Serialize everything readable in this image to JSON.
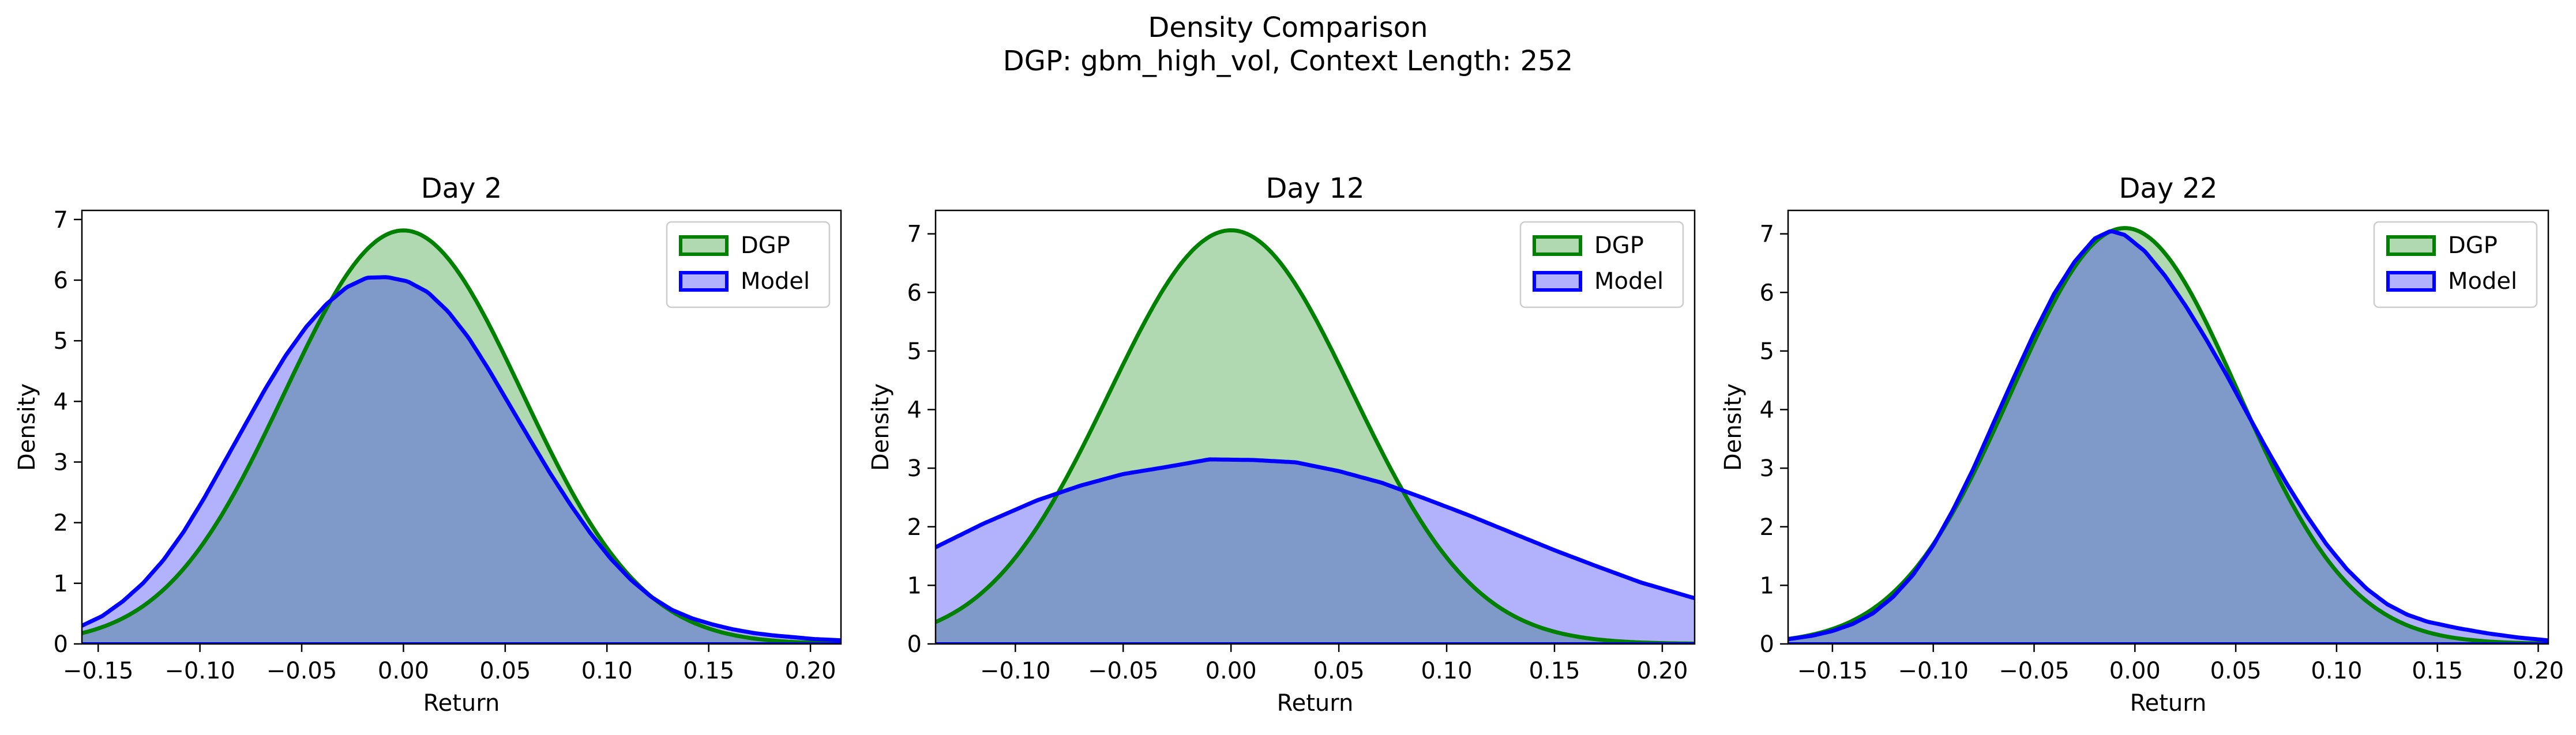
{
  "figure": {
    "title_line1": "Density Comparison",
    "title_line2": "DGP: gbm_high_vol, Context Length: 252"
  },
  "colors": {
    "dgp_line": "#008000",
    "dgp_fill": "#b1d9b1",
    "model_line": "#0000ff",
    "model_fill": "#b2b2fc",
    "overlap_fill": "#7f99c8"
  },
  "chart_data": [
    {
      "type": "area",
      "title": "Day 2",
      "xlabel": "Return",
      "ylabel": "Density",
      "xlim": [
        -0.158,
        0.215
      ],
      "ylim": [
        0,
        7.15
      ],
      "xticks": [
        -0.15,
        -0.1,
        -0.05,
        0.0,
        0.05,
        0.1,
        0.15,
        0.2
      ],
      "xtick_labels": [
        "−0.15",
        "−0.10",
        "−0.05",
        "0.00",
        "0.05",
        "0.10",
        "0.15",
        "0.20"
      ],
      "yticks": [
        0,
        1,
        2,
        3,
        4,
        5,
        6,
        7
      ],
      "ytick_labels": [
        "0",
        "1",
        "2",
        "3",
        "4",
        "5",
        "6",
        "7"
      ],
      "legend": {
        "position": "top-right",
        "entries": [
          "DGP",
          "Model"
        ]
      },
      "series": [
        {
          "name": "DGP",
          "type": "normal",
          "mean": 0.0,
          "sd": 0.0585
        },
        {
          "name": "Model",
          "x": [
            -0.158,
            -0.148,
            -0.138,
            -0.128,
            -0.118,
            -0.108,
            -0.098,
            -0.088,
            -0.078,
            -0.068,
            -0.058,
            -0.048,
            -0.038,
            -0.028,
            -0.018,
            -0.008,
            0.002,
            0.012,
            0.022,
            0.032,
            0.042,
            0.052,
            0.062,
            0.072,
            0.082,
            0.092,
            0.102,
            0.112,
            0.122,
            0.132,
            0.142,
            0.152,
            0.162,
            0.172,
            0.182,
            0.192,
            0.202,
            0.215
          ],
          "y": [
            0.3,
            0.46,
            0.7,
            1.0,
            1.38,
            1.85,
            2.4,
            3.0,
            3.6,
            4.2,
            4.75,
            5.22,
            5.6,
            5.88,
            6.04,
            6.05,
            5.98,
            5.8,
            5.48,
            5.05,
            4.52,
            3.95,
            3.38,
            2.82,
            2.3,
            1.82,
            1.4,
            1.05,
            0.77,
            0.56,
            0.42,
            0.32,
            0.24,
            0.18,
            0.14,
            0.11,
            0.08,
            0.06
          ]
        }
      ]
    },
    {
      "type": "area",
      "title": "Day 12",
      "xlabel": "Return",
      "ylabel": "Density",
      "xlim": [
        -0.137,
        0.215
      ],
      "ylim": [
        0,
        7.4
      ],
      "xticks": [
        -0.1,
        -0.05,
        0.0,
        0.05,
        0.1,
        0.15,
        0.2
      ],
      "xtick_labels": [
        "−0.10",
        "−0.05",
        "0.00",
        "0.05",
        "0.10",
        "0.15",
        "0.20"
      ],
      "yticks": [
        0,
        1,
        2,
        3,
        4,
        5,
        6,
        7
      ],
      "ytick_labels": [
        "0",
        "1",
        "2",
        "3",
        "4",
        "5",
        "6",
        "7"
      ],
      "legend": {
        "position": "top-right",
        "entries": [
          "DGP",
          "Model"
        ]
      },
      "series": [
        {
          "name": "DGP",
          "type": "normal",
          "mean": 0.0,
          "sd": 0.0565
        },
        {
          "name": "Model",
          "x": [
            -0.137,
            -0.115,
            -0.09,
            -0.07,
            -0.05,
            -0.03,
            -0.01,
            0.01,
            0.03,
            0.05,
            0.07,
            0.09,
            0.11,
            0.13,
            0.15,
            0.17,
            0.19,
            0.215
          ],
          "y": [
            1.65,
            2.05,
            2.45,
            2.7,
            2.9,
            3.02,
            3.15,
            3.14,
            3.1,
            2.95,
            2.75,
            2.48,
            2.2,
            1.9,
            1.6,
            1.32,
            1.05,
            0.78
          ]
        }
      ]
    },
    {
      "type": "area",
      "title": "Day 22",
      "xlabel": "Return",
      "ylabel": "Density",
      "xlim": [
        -0.172,
        0.205
      ],
      "ylim": [
        0,
        7.4
      ],
      "xticks": [
        -0.15,
        -0.1,
        -0.05,
        0.0,
        0.05,
        0.1,
        0.15,
        0.2
      ],
      "xtick_labels": [
        "−0.15",
        "−0.10",
        "−0.05",
        "0.00",
        "0.05",
        "0.10",
        "0.15",
        "0.20"
      ],
      "yticks": [
        0,
        1,
        2,
        3,
        4,
        5,
        6,
        7
      ],
      "ytick_labels": [
        "0",
        "1",
        "2",
        "3",
        "4",
        "5",
        "6",
        "7"
      ],
      "legend": {
        "position": "top-right",
        "entries": [
          "DGP",
          "Model"
        ]
      },
      "series": [
        {
          "name": "DGP",
          "type": "normal",
          "mean": -0.005,
          "sd": 0.0562
        },
        {
          "name": "Model",
          "x": [
            -0.172,
            -0.16,
            -0.15,
            -0.14,
            -0.13,
            -0.12,
            -0.11,
            -0.1,
            -0.09,
            -0.08,
            -0.07,
            -0.06,
            -0.05,
            -0.04,
            -0.03,
            -0.02,
            -0.012,
            -0.005,
            0.005,
            0.015,
            0.025,
            0.035,
            0.045,
            0.055,
            0.065,
            0.075,
            0.085,
            0.095,
            0.105,
            0.115,
            0.125,
            0.135,
            0.145,
            0.16,
            0.175,
            0.19,
            0.205
          ],
          "y": [
            0.08,
            0.14,
            0.22,
            0.34,
            0.52,
            0.8,
            1.18,
            1.68,
            2.3,
            3.0,
            3.78,
            4.55,
            5.3,
            5.98,
            6.52,
            6.92,
            7.05,
            6.98,
            6.7,
            6.28,
            5.78,
            5.22,
            4.62,
            3.98,
            3.35,
            2.75,
            2.2,
            1.7,
            1.28,
            0.94,
            0.68,
            0.5,
            0.38,
            0.27,
            0.18,
            0.11,
            0.06
          ]
        }
      ]
    }
  ]
}
